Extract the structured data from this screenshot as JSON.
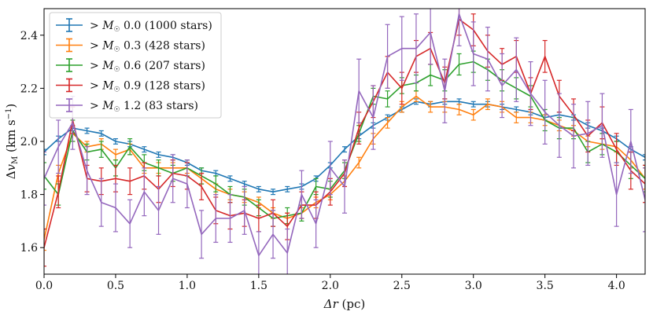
{
  "chart_data": {
    "type": "line",
    "title": "",
    "xlabel": "Δr (pc)",
    "ylabel": "Δv_M (km s⁻¹)",
    "xlim": [
      0.0,
      4.2
    ],
    "ylim": [
      1.5,
      2.5
    ],
    "xticks": [
      0.0,
      0.5,
      1.0,
      1.5,
      2.0,
      2.5,
      3.0,
      3.5,
      4.0
    ],
    "xtick_labels": [
      "0.0",
      "0.5",
      "1.0",
      "1.5",
      "2.0",
      "2.5",
      "3.0",
      "3.5",
      "4.0"
    ],
    "yticks": [
      1.6,
      1.8,
      2.0,
      2.2,
      2.4
    ],
    "ytick_labels": [
      "1.6",
      "1.8",
      "2.0",
      "2.2",
      "2.4"
    ],
    "legend_position": "top-left",
    "x": [
      0.0,
      0.1,
      0.2,
      0.3,
      0.4,
      0.5,
      0.6,
      0.7,
      0.8,
      0.9,
      1.0,
      1.1,
      1.2,
      1.3,
      1.4,
      1.5,
      1.6,
      1.7,
      1.8,
      1.9,
      2.0,
      2.1,
      2.2,
      2.3,
      2.4,
      2.5,
      2.6,
      2.7,
      2.8,
      2.9,
      3.0,
      3.1,
      3.2,
      3.3,
      3.4,
      3.5,
      3.6,
      3.7,
      3.8,
      3.9,
      4.0,
      4.1,
      4.2
    ],
    "series": [
      {
        "name": "> M☉ 0.0 (1000 stars)",
        "mass_label": "0.0",
        "count_label": "(1000 stars)",
        "color": "#1f77b4",
        "values": [
          1.96,
          2.01,
          2.05,
          2.04,
          2.03,
          2.0,
          1.99,
          1.97,
          1.95,
          1.94,
          1.92,
          1.89,
          1.88,
          1.86,
          1.84,
          1.82,
          1.81,
          1.82,
          1.83,
          1.86,
          1.91,
          1.97,
          2.02,
          2.06,
          2.09,
          2.12,
          2.15,
          2.14,
          2.15,
          2.15,
          2.14,
          2.14,
          2.13,
          2.12,
          2.11,
          2.09,
          2.1,
          2.09,
          2.06,
          2.04,
          2.01,
          1.97,
          1.94
        ],
        "errors": [
          0.01,
          0.01,
          0.01,
          0.01,
          0.01,
          0.01,
          0.01,
          0.01,
          0.01,
          0.01,
          0.01,
          0.01,
          0.01,
          0.01,
          0.01,
          0.01,
          0.01,
          0.01,
          0.01,
          0.01,
          0.01,
          0.01,
          0.01,
          0.01,
          0.01,
          0.01,
          0.01,
          0.01,
          0.01,
          0.01,
          0.01,
          0.01,
          0.01,
          0.01,
          0.01,
          0.01,
          0.01,
          0.01,
          0.01,
          0.01,
          0.01,
          0.01,
          0.01
        ]
      },
      {
        "name": "> M☉ 0.3 (428 stars)",
        "mass_label": "0.3",
        "count_label": "(428 stars)",
        "color": "#ff7f0e",
        "values": [
          1.63,
          1.88,
          2.03,
          1.98,
          1.99,
          1.95,
          1.97,
          1.9,
          1.9,
          1.9,
          1.9,
          1.86,
          1.82,
          1.8,
          1.79,
          1.77,
          1.73,
          1.71,
          1.73,
          1.77,
          1.8,
          1.85,
          1.92,
          2.01,
          2.07,
          2.13,
          2.17,
          2.13,
          2.13,
          2.12,
          2.1,
          2.14,
          2.13,
          2.09,
          2.09,
          2.08,
          2.06,
          2.04,
          2.0,
          1.99,
          1.98,
          1.93,
          1.86
        ],
        "errors": [
          0.04,
          0.03,
          0.03,
          0.02,
          0.02,
          0.02,
          0.02,
          0.02,
          0.02,
          0.02,
          0.02,
          0.02,
          0.02,
          0.02,
          0.02,
          0.02,
          0.02,
          0.02,
          0.02,
          0.02,
          0.02,
          0.02,
          0.02,
          0.02,
          0.02,
          0.02,
          0.02,
          0.02,
          0.02,
          0.02,
          0.02,
          0.02,
          0.02,
          0.02,
          0.02,
          0.02,
          0.02,
          0.02,
          0.02,
          0.02,
          0.02,
          0.03,
          0.04
        ]
      },
      {
        "name": "> M☉ 0.6 (207 stars)",
        "mass_label": "0.6",
        "count_label": "(207 stars)",
        "color": "#2ca02c",
        "values": [
          1.87,
          1.8,
          2.04,
          1.96,
          1.97,
          1.9,
          1.98,
          1.92,
          1.9,
          1.88,
          1.9,
          1.87,
          1.84,
          1.8,
          1.79,
          1.75,
          1.71,
          1.72,
          1.73,
          1.83,
          1.82,
          1.89,
          2.03,
          2.17,
          2.16,
          2.21,
          2.22,
          2.25,
          2.23,
          2.29,
          2.3,
          2.27,
          2.23,
          2.2,
          2.17,
          2.08,
          2.05,
          2.05,
          1.96,
          1.99,
          1.96,
          1.91,
          1.86
        ],
        "errors": [
          0.05,
          0.04,
          0.04,
          0.03,
          0.03,
          0.03,
          0.03,
          0.03,
          0.03,
          0.03,
          0.03,
          0.03,
          0.03,
          0.03,
          0.03,
          0.03,
          0.03,
          0.03,
          0.03,
          0.03,
          0.03,
          0.03,
          0.03,
          0.03,
          0.03,
          0.03,
          0.03,
          0.04,
          0.04,
          0.04,
          0.04,
          0.04,
          0.04,
          0.04,
          0.04,
          0.04,
          0.04,
          0.04,
          0.04,
          0.04,
          0.04,
          0.05,
          0.05
        ]
      },
      {
        "name": "> M☉ 0.9 (128 stars)",
        "mass_label": "0.9",
        "count_label": "(128 stars)",
        "color": "#d62728",
        "values": [
          1.6,
          1.81,
          2.08,
          1.86,
          1.85,
          1.86,
          1.85,
          1.87,
          1.82,
          1.88,
          1.87,
          1.83,
          1.74,
          1.72,
          1.73,
          1.71,
          1.73,
          1.68,
          1.76,
          1.76,
          1.81,
          1.88,
          2.05,
          2.15,
          2.26,
          2.2,
          2.32,
          2.35,
          2.22,
          2.46,
          2.42,
          2.34,
          2.29,
          2.32,
          2.18,
          2.32,
          2.17,
          2.1,
          2.02,
          2.07,
          1.97,
          1.89,
          1.84
        ],
        "errors": [
          0.07,
          0.06,
          0.05,
          0.05,
          0.05,
          0.05,
          0.05,
          0.05,
          0.05,
          0.05,
          0.05,
          0.05,
          0.05,
          0.05,
          0.05,
          0.05,
          0.05,
          0.05,
          0.05,
          0.05,
          0.05,
          0.05,
          0.06,
          0.06,
          0.06,
          0.06,
          0.06,
          0.06,
          0.06,
          0.06,
          0.06,
          0.06,
          0.06,
          0.06,
          0.06,
          0.06,
          0.06,
          0.06,
          0.06,
          0.06,
          0.06,
          0.07,
          0.07
        ]
      },
      {
        "name": "> M☉ 1.2 (83 stars)",
        "mass_label": "1.2",
        "count_label": "(83 stars)",
        "color": "#9467bd",
        "values": [
          1.86,
          1.98,
          2.07,
          1.89,
          1.77,
          1.75,
          1.69,
          1.81,
          1.74,
          1.86,
          1.84,
          1.65,
          1.71,
          1.71,
          1.74,
          1.57,
          1.65,
          1.58,
          1.8,
          1.69,
          1.9,
          1.83,
          2.19,
          2.09,
          2.32,
          2.35,
          2.35,
          2.41,
          2.19,
          2.48,
          2.33,
          2.31,
          2.21,
          2.27,
          2.18,
          2.11,
          2.06,
          2.02,
          2.03,
          2.06,
          1.8,
          2.0,
          1.78
        ],
        "errors": [
          0.1,
          0.1,
          0.1,
          0.09,
          0.09,
          0.09,
          0.09,
          0.09,
          0.09,
          0.09,
          0.09,
          0.09,
          0.09,
          0.09,
          0.09,
          0.09,
          0.09,
          0.09,
          0.09,
          0.09,
          0.1,
          0.1,
          0.12,
          0.12,
          0.12,
          0.12,
          0.13,
          0.12,
          0.12,
          0.12,
          0.12,
          0.12,
          0.12,
          0.12,
          0.12,
          0.12,
          0.12,
          0.12,
          0.12,
          0.12,
          0.12,
          0.12,
          0.12
        ]
      }
    ]
  }
}
